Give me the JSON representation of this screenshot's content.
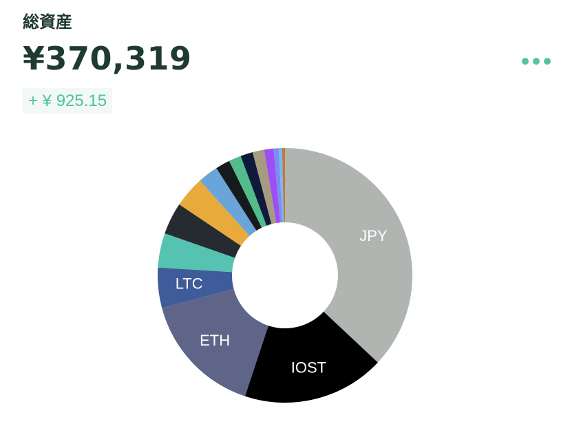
{
  "header": {
    "title": "総資産",
    "total": "¥370,319",
    "change": "+ ¥ 925.15",
    "more_icon": "more-dots-icon",
    "accent_color": "#4cc594"
  },
  "chart_data": {
    "type": "pie",
    "donut": true,
    "start_angle_deg": 0,
    "direction": "clockwise",
    "slices": [
      {
        "label": "JPY",
        "share": 0.402,
        "color": "#b0b5b2"
      },
      {
        "label": "IOST",
        "share": 0.1965,
        "color": "#000000"
      },
      {
        "label": "ETH",
        "share": 0.1715,
        "color": "#5f6589"
      },
      {
        "label": "LTC",
        "share": 0.0555,
        "color": "#3f5b99"
      },
      {
        "label": "",
        "share": 0.0475,
        "color": "#56c2b1"
      },
      {
        "label": "",
        "share": 0.044,
        "color": "#262a31"
      },
      {
        "label": "",
        "share": 0.043,
        "color": "#e8aa3b"
      },
      {
        "label": "",
        "share": 0.028,
        "color": "#6aa5da"
      },
      {
        "label": "",
        "share": 0.02,
        "color": "#171a1d"
      },
      {
        "label": "",
        "share": 0.017,
        "color": "#53bc8c"
      },
      {
        "label": "",
        "share": 0.017,
        "color": "#0e1a3a"
      },
      {
        "label": "",
        "share": 0.016,
        "color": "#a89a80"
      },
      {
        "label": "",
        "share": 0.013,
        "color": "#9b4ff5"
      },
      {
        "label": "",
        "share": 0.007,
        "color": "#7a8ef0"
      },
      {
        "label": "",
        "share": 0.0045,
        "color": "#77b8f3"
      },
      {
        "label": "",
        "share": 0.004,
        "color": "#c07a3a"
      }
    ]
  }
}
